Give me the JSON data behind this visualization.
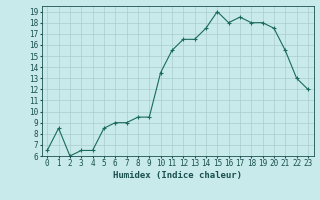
{
  "x": [
    0,
    1,
    2,
    3,
    4,
    5,
    6,
    7,
    8,
    9,
    10,
    11,
    12,
    13,
    14,
    15,
    16,
    17,
    18,
    19,
    20,
    21,
    22,
    23
  ],
  "y": [
    6.5,
    8.5,
    6.0,
    6.5,
    6.5,
    8.5,
    9.0,
    9.0,
    9.5,
    9.5,
    13.5,
    15.5,
    16.5,
    16.5,
    17.5,
    19.0,
    18.0,
    18.5,
    18.0,
    18.0,
    17.5,
    15.5,
    13.0,
    12.0
  ],
  "line_color": "#1a6b5a",
  "marker": "+",
  "marker_size": 3,
  "bg_color": "#c8eaea",
  "grid_color": "#aacccc",
  "xlabel": "Humidex (Indice chaleur)",
  "ylim": [
    6,
    19.5
  ],
  "xlim": [
    -0.5,
    23.5
  ],
  "yticks": [
    6,
    7,
    8,
    9,
    10,
    11,
    12,
    13,
    14,
    15,
    16,
    17,
    18,
    19
  ],
  "xticks": [
    0,
    1,
    2,
    3,
    4,
    5,
    6,
    7,
    8,
    9,
    10,
    11,
    12,
    13,
    14,
    15,
    16,
    17,
    18,
    19,
    20,
    21,
    22,
    23
  ],
  "font_color": "#1a5050",
  "label_fontsize": 6.5,
  "tick_fontsize": 5.5
}
